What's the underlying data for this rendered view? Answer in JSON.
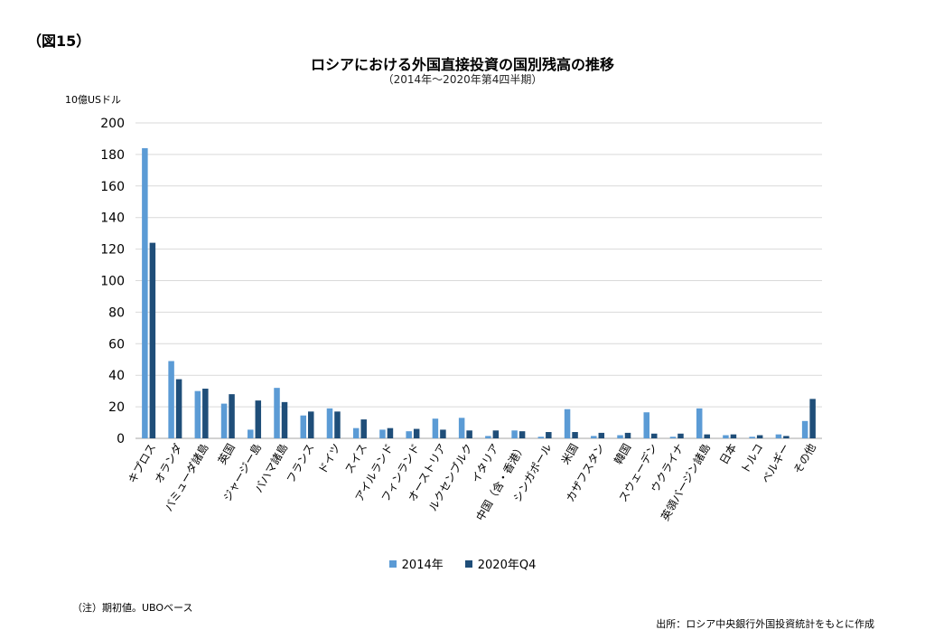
{
  "figure_label": "（図15）",
  "note": "（注）期初値。UBOベース",
  "source": "出所：ロシア中央銀行外国投資統計をもとに作成",
  "colors": {
    "series_2014": "#5b9bd5",
    "series_2020": "#1f4e79",
    "grid": "#d9d9d9",
    "axis": "#a6a6a6"
  },
  "chart_data": {
    "type": "bar",
    "title": "ロシアにおける外国直接投資の国別残高の推移",
    "subtitle": "（2014年～2020年第4四半期）",
    "ylabel": "10億USドル",
    "xlabel": "",
    "ylim": [
      0,
      200
    ],
    "yticks": [
      0,
      20,
      40,
      60,
      80,
      100,
      120,
      140,
      160,
      180,
      200
    ],
    "grid": true,
    "legend_position": "bottom",
    "categories": [
      "キプロス",
      "オランダ",
      "バミューダ諸島",
      "英国",
      "ジャージー島",
      "バハマ諸島",
      "フランス",
      "ドイツ",
      "スイス",
      "アイルランド",
      "フィンランド",
      "オーストリア",
      "ルクセンブルク",
      "イタリア",
      "中国（含・香港）",
      "シンガポール",
      "米国",
      "カザフスタン",
      "韓国",
      "スウェーデン",
      "ウクライナ",
      "英領バージン諸島",
      "日本",
      "トルコ",
      "ベルギー",
      "その他"
    ],
    "series": [
      {
        "name": "2014年",
        "values": [
          184,
          49,
          30,
          22,
          5.5,
          32,
          14.5,
          19,
          6.5,
          5.5,
          4.5,
          12.5,
          13,
          1.5,
          5,
          1,
          18.5,
          1.5,
          2,
          16.5,
          1,
          19,
          2,
          1,
          2.5,
          11
        ]
      },
      {
        "name": "2020年Q4",
        "values": [
          124,
          37.5,
          31.5,
          28,
          24,
          23,
          17,
          17,
          12,
          6.5,
          6,
          5.5,
          5,
          5,
          4.5,
          4,
          4,
          3.5,
          3.5,
          3,
          3,
          2.5,
          2.5,
          2,
          1.5,
          25
        ]
      }
    ]
  }
}
